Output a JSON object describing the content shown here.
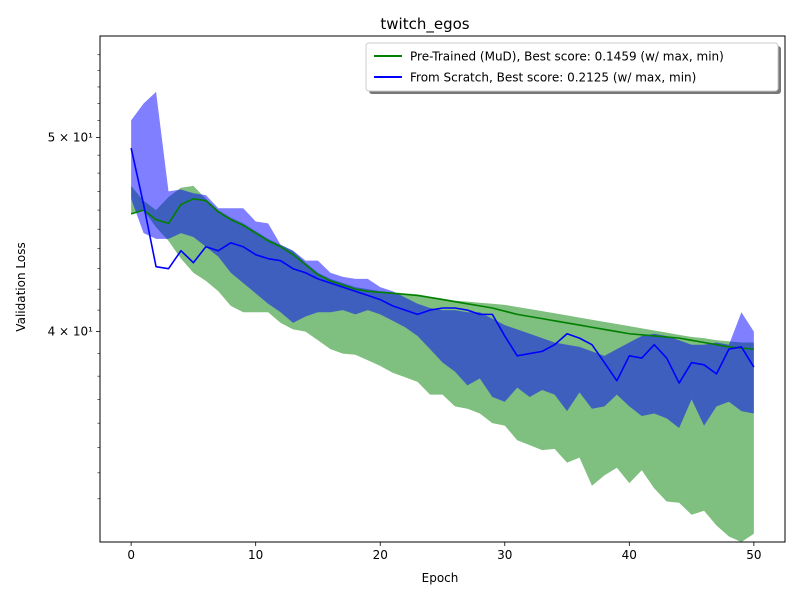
{
  "chart_data": {
    "type": "line",
    "title": "twitch_egos",
    "xlabel": "Epoch",
    "ylabel": "Validation Loss",
    "yscale": "log",
    "xlim": [
      -2.5,
      52.5
    ],
    "ylim": [
      31.4,
      56.2
    ],
    "x_ticks": [
      0,
      10,
      20,
      30,
      40,
      50
    ],
    "y_ticks": [
      {
        "value": 40,
        "label": "4 × 10¹"
      },
      {
        "value": 50,
        "label": "5 × 10¹"
      }
    ],
    "legend_position": "upper right",
    "series": [
      {
        "name": "Pre-Trained (MuD), Best score: 0.1459 (w/ max, min)",
        "color": "#008000",
        "fill": "rgba(0,128,0,0.5)",
        "x": [
          0,
          1,
          2,
          3,
          4,
          5,
          6,
          7,
          8,
          9,
          10,
          11,
          12,
          13,
          14,
          15,
          16,
          17,
          18,
          19,
          20,
          21,
          22,
          23,
          24,
          25,
          26,
          27,
          28,
          29,
          30,
          31,
          32,
          33,
          34,
          35,
          36,
          37,
          38,
          39,
          40,
          41,
          42,
          43,
          44,
          45,
          46,
          47,
          48,
          49,
          50
        ],
        "mean": [
          45.8,
          46.0,
          45.5,
          45.3,
          46.3,
          46.6,
          46.5,
          45.9,
          45.5,
          45.2,
          44.8,
          44.4,
          44.1,
          43.7,
          43.2,
          42.7,
          42.4,
          42.2,
          42.0,
          41.9,
          41.85,
          41.8,
          41.75,
          41.7,
          41.6,
          41.5,
          41.4,
          41.3,
          41.2,
          41.1,
          40.95,
          40.8,
          40.7,
          40.6,
          40.5,
          40.4,
          40.3,
          40.2,
          40.1,
          40.0,
          39.9,
          39.85,
          39.8,
          39.75,
          39.7,
          39.6,
          39.5,
          39.4,
          39.3,
          39.25,
          39.2
        ],
        "max": [
          47.3,
          46.5,
          46.0,
          46.7,
          47.2,
          47.3,
          46.6,
          46.0,
          45.6,
          45.3,
          44.9,
          44.5,
          44.2,
          43.9,
          43.3,
          42.8,
          42.5,
          42.3,
          42.1,
          42.0,
          41.9,
          41.85,
          41.8,
          41.75,
          41.65,
          41.55,
          41.45,
          41.4,
          41.35,
          41.3,
          41.25,
          41.15,
          41.05,
          40.95,
          40.85,
          40.75,
          40.65,
          40.55,
          40.45,
          40.35,
          40.25,
          40.15,
          40.05,
          39.95,
          39.85,
          39.75,
          39.7,
          39.6,
          39.55,
          39.5,
          39.5
        ],
        "min": [
          45.8,
          46.0,
          45.1,
          44.4,
          43.5,
          42.8,
          42.4,
          41.9,
          41.2,
          40.9,
          40.9,
          40.9,
          40.4,
          40.1,
          40.0,
          39.6,
          39.2,
          39.0,
          38.95,
          38.7,
          38.45,
          38.15,
          37.95,
          37.75,
          37.2,
          37.2,
          36.7,
          36.6,
          36.4,
          36.0,
          35.9,
          35.3,
          35.1,
          34.9,
          34.95,
          34.4,
          34.6,
          33.5,
          33.9,
          34.2,
          33.6,
          34.1,
          33.4,
          32.9,
          32.85,
          32.4,
          32.55,
          32.0,
          31.6,
          31.4,
          31.7
        ]
      },
      {
        "name": "From Scratch, Best score: 0.2125 (w/ max, min)",
        "color": "#0000ff",
        "fill": "rgba(0,0,255,0.5)",
        "x": [
          0,
          1,
          2,
          3,
          4,
          5,
          6,
          7,
          8,
          9,
          10,
          11,
          12,
          13,
          14,
          15,
          16,
          17,
          18,
          19,
          20,
          21,
          22,
          23,
          24,
          25,
          26,
          27,
          28,
          29,
          30,
          31,
          32,
          33,
          34,
          35,
          36,
          37,
          38,
          39,
          40,
          41,
          42,
          43,
          44,
          45,
          46,
          47,
          48,
          49,
          50
        ],
        "mean": [
          49.4,
          46.3,
          43.1,
          43.0,
          43.9,
          43.3,
          44.1,
          43.9,
          44.3,
          44.1,
          43.7,
          43.5,
          43.4,
          43.0,
          42.8,
          42.5,
          42.3,
          42.1,
          41.9,
          41.7,
          41.5,
          41.2,
          41.0,
          40.8,
          41.0,
          41.1,
          41.1,
          41.0,
          40.8,
          40.8,
          39.8,
          38.9,
          39.0,
          39.1,
          39.4,
          39.9,
          39.7,
          39.4,
          38.6,
          37.8,
          38.9,
          38.8,
          39.4,
          38.8,
          37.7,
          38.6,
          38.5,
          38.1,
          39.2,
          39.3,
          38.4
        ],
        "max": [
          51.0,
          52.0,
          52.7,
          47.0,
          47.1,
          46.9,
          46.8,
          46.1,
          46.1,
          46.1,
          45.4,
          45.3,
          44.2,
          43.9,
          43.4,
          43.4,
          42.8,
          42.6,
          42.5,
          42.5,
          42.1,
          41.9,
          41.6,
          41.3,
          41.1,
          41.0,
          41.0,
          40.9,
          40.9,
          40.6,
          40.3,
          40.1,
          39.9,
          39.7,
          39.5,
          39.4,
          39.3,
          39.1,
          38.9,
          39.2,
          39.5,
          39.8,
          39.9,
          39.8,
          39.6,
          39.4,
          39.4,
          39.5,
          39.4,
          40.9,
          40.0
        ],
        "min": [
          46.6,
          44.8,
          44.5,
          44.5,
          44.8,
          44.6,
          44.1,
          43.6,
          42.8,
          42.3,
          41.8,
          41.3,
          40.9,
          40.4,
          40.7,
          40.9,
          40.9,
          41.0,
          40.8,
          41.0,
          40.8,
          40.5,
          40.2,
          39.8,
          39.2,
          38.6,
          38.2,
          37.6,
          37.9,
          37.1,
          36.9,
          37.5,
          37.1,
          37.4,
          37.2,
          36.5,
          37.3,
          36.6,
          36.7,
          37.2,
          36.7,
          36.3,
          36.4,
          36.2,
          35.8,
          37.0,
          35.9,
          36.7,
          36.9,
          36.5,
          36.4
        ]
      }
    ]
  }
}
